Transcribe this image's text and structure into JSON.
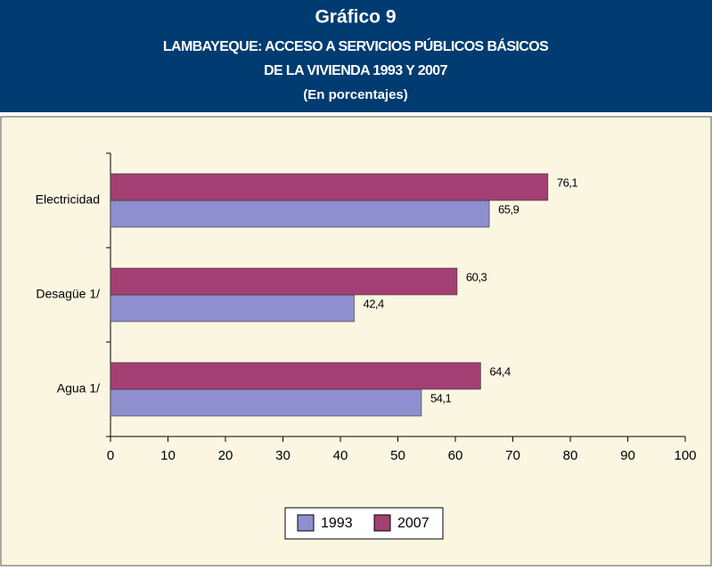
{
  "chart_data": {
    "type": "hbar",
    "title": "Gráfico 9",
    "subtitle": [
      "LAMBAYEQUE: ACCESO A SERVICIOS PÚBLICOS BÁSICOS",
      "DE LA VIVIENDA 1993 Y 2007"
    ],
    "unit_note": "(En porcentajes)",
    "categories": [
      "Electricidad",
      "Desagüe 1/",
      "Agua 1/"
    ],
    "series": [
      {
        "name": "1993",
        "color": "#8f8fcf",
        "values": [
          65.9,
          42.4,
          54.1
        ],
        "value_labels": [
          "65,9",
          "42,4",
          "54,1"
        ]
      },
      {
        "name": "2007",
        "color": "#a33f73",
        "values": [
          76.1,
          60.3,
          64.4
        ],
        "value_labels": [
          "76,1",
          "60,3",
          "64,4"
        ]
      }
    ],
    "xlim": [
      0,
      100
    ],
    "xticks": [
      0,
      10,
      20,
      30,
      40,
      50,
      60,
      70,
      80,
      90,
      100
    ],
    "legend": "bottom"
  }
}
